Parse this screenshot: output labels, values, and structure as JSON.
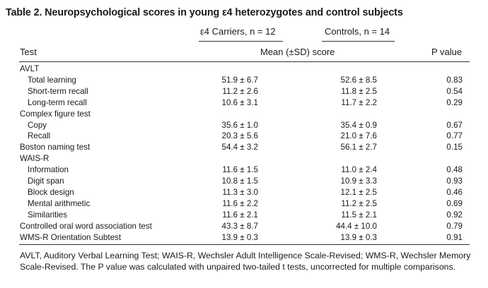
{
  "title": "Table 2. Neuropsychological scores in young ε4 heterozygotes and control subjects",
  "group_headers": {
    "carriers": "ε4 Carriers, n = 12",
    "controls": "Controls, n = 14"
  },
  "column_headers": {
    "test": "Test",
    "score": "Mean (±SD) score",
    "p": "P value"
  },
  "rows": [
    {
      "label": "AVLT",
      "indent": false,
      "c": "",
      "k": "",
      "p": ""
    },
    {
      "label": "Total learning",
      "indent": true,
      "c": "51.9 ± 6.7",
      "k": "52.6 ± 8.5",
      "p": "0.83"
    },
    {
      "label": "Short-term recall",
      "indent": true,
      "c": "11.2 ± 2.6",
      "k": "11.8 ± 2.5",
      "p": "0.54"
    },
    {
      "label": "Long-term recall",
      "indent": true,
      "c": "10.6 ± 3.1",
      "k": "11.7 ± 2.2",
      "p": "0.29"
    },
    {
      "label": "Complex figure test",
      "indent": false,
      "c": "",
      "k": "",
      "p": ""
    },
    {
      "label": "Copy",
      "indent": true,
      "c": "35.6 ± 1.0",
      "k": "35.4 ± 0.9",
      "p": "0.67"
    },
    {
      "label": "Recall",
      "indent": true,
      "c": "20.3 ± 5.6",
      "k": "21.0 ± 7.6",
      "p": "0.77"
    },
    {
      "label": "Boston naming test",
      "indent": false,
      "c": "54.4 ± 3.2",
      "k": "56.1 ± 2.7",
      "p": "0.15"
    },
    {
      "label": "WAIS-R",
      "indent": false,
      "c": "",
      "k": "",
      "p": ""
    },
    {
      "label": "Information",
      "indent": true,
      "c": "11.6 ± 1.5",
      "k": "11.0 ± 2.4",
      "p": "0.48"
    },
    {
      "label": "Digit span",
      "indent": true,
      "c": "10.8 ± 1.5",
      "k": "10.9 ± 3.3",
      "p": "0.93"
    },
    {
      "label": "Block design",
      "indent": true,
      "c": "11.3 ± 3.0",
      "k": "12.1 ± 2.5",
      "p": "0.46"
    },
    {
      "label": "Mental arithmetic",
      "indent": true,
      "c": "11.6 ± 2.2",
      "k": "11.2 ± 2.5",
      "p": "0.69"
    },
    {
      "label": "Similarities",
      "indent": true,
      "c": "11.6 ± 2.1",
      "k": "11.5 ± 2.1",
      "p": "0.92"
    },
    {
      "label": "Controlled oral word association test",
      "indent": false,
      "c": "43.3 ± 8.7",
      "k": "44.4 ± 10.0",
      "p": "0.79"
    },
    {
      "label": "WMS-R Orientation Subtest",
      "indent": false,
      "c": "13.9 ± 0.3",
      "k": "13.9 ± 0.3",
      "p": "0.91"
    }
  ],
  "footnote": "AVLT, Auditory Verbal Learning Test; WAIS-R, Wechsler Adult Intelligence Scale-Revised; WMS-R, Wechsler Memory Scale-Revised. The P value was calculated with unpaired two-tailed t tests, uncorrected for multiple comparisons."
}
